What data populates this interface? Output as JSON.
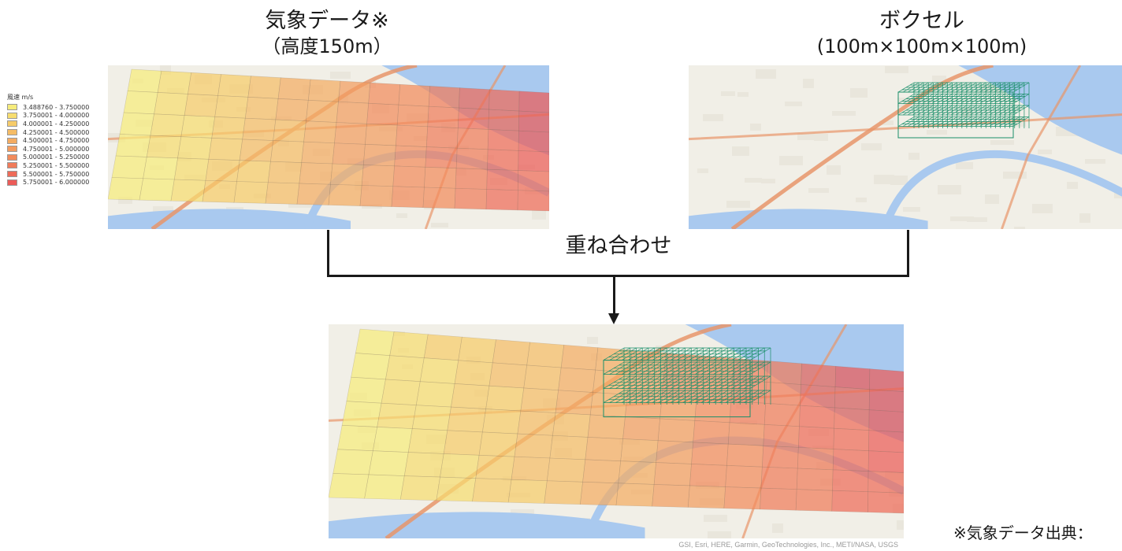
{
  "left_title": {
    "main": "気象データ※",
    "sub": "（高度150m）"
  },
  "right_title": {
    "main": "ボクセル",
    "sub": "(100m×100m×100m)"
  },
  "legend": {
    "title": "風速 m/s",
    "items": [
      {
        "label": "3.488760 - 3.750000",
        "color": "#f6ec7c"
      },
      {
        "label": "3.750001 - 4.000000",
        "color": "#f7dd70"
      },
      {
        "label": "4.000001 - 4.250000",
        "color": "#f6cc6a"
      },
      {
        "label": "4.250001 - 4.500000",
        "color": "#f5bc66"
      },
      {
        "label": "4.500001 - 4.750000",
        "color": "#f4ac62"
      },
      {
        "label": "4.750001 - 5.000000",
        "color": "#f39c5f"
      },
      {
        "label": "5.000001 - 5.250000",
        "color": "#f28b5c"
      },
      {
        "label": "5.250001 - 5.500000",
        "color": "#f07b5a"
      },
      {
        "label": "5.500001 - 5.750000",
        "color": "#ee6b59"
      },
      {
        "label": "5.750001 - 6.000000",
        "color": "#ec5b58"
      }
    ]
  },
  "merge_label": "重ね合わせ",
  "footnote": "※気象データ出典：",
  "credit": "GSI, Esri, HERE, Garmin, GeoTechnologies, Inc., METI/NASA, USGS",
  "colors": {
    "voxel": "#1a8f6a",
    "river": "#a9c9ef",
    "road": "#e8956a",
    "land": "#f1efe7",
    "bracket": "#1a1a1a"
  }
}
